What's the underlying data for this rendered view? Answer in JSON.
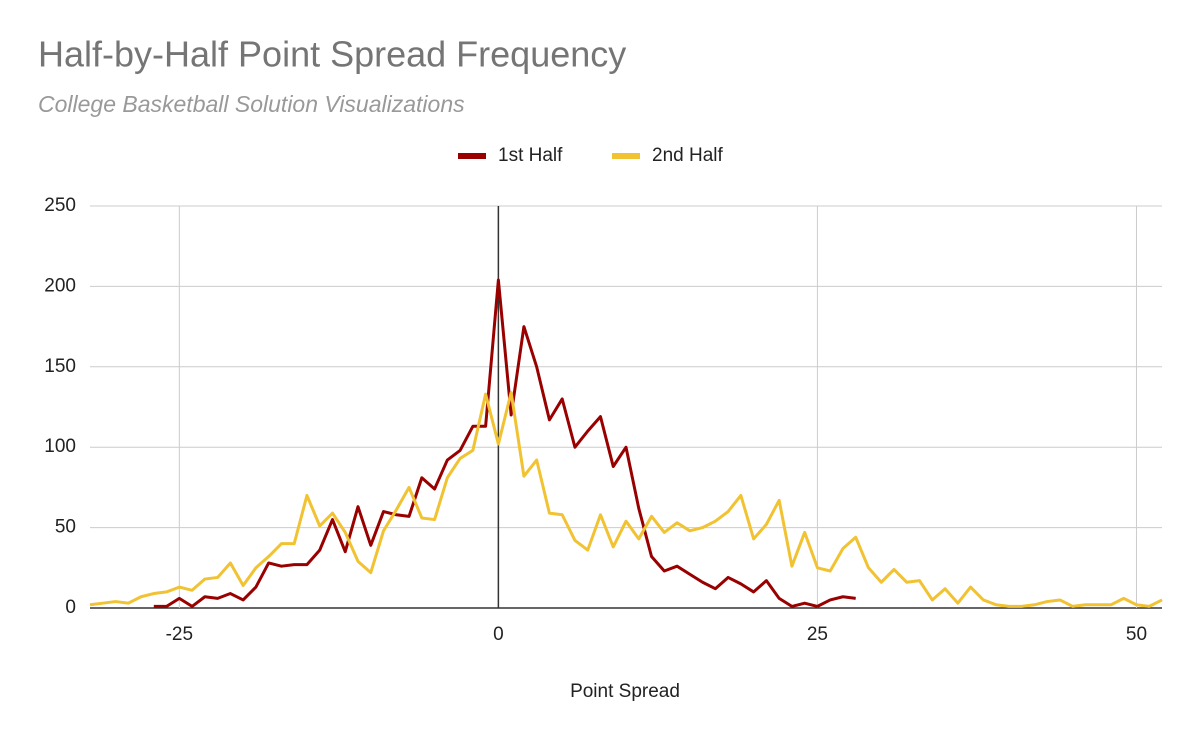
{
  "chart_data": {
    "type": "line",
    "title": "Half-by-Half Point Spread Frequency",
    "subtitle": "College Basketball Solution Visualizations",
    "x_label": "Point Spread",
    "x": [
      -32,
      -31,
      -30,
      -29,
      -28,
      -27,
      -26,
      -25,
      -24,
      -23,
      -22,
      -21,
      -20,
      -19,
      -18,
      -17,
      -16,
      -15,
      -14,
      -13,
      -12,
      -11,
      -10,
      -9,
      -8,
      -7,
      -6,
      -5,
      -4,
      -3,
      -2,
      -1,
      0,
      1,
      2,
      3,
      4,
      5,
      6,
      7,
      8,
      9,
      10,
      11,
      12,
      13,
      14,
      15,
      16,
      17,
      18,
      19,
      20,
      21,
      22,
      23,
      24,
      25,
      26,
      27,
      28,
      29,
      30,
      31,
      32,
      33,
      34,
      35,
      36,
      37,
      38,
      39,
      40,
      41,
      42,
      43,
      44,
      45,
      46,
      47,
      48,
      49,
      50,
      51,
      52
    ],
    "series": [
      {
        "name": "1st Half",
        "color": "#990000",
        "values": [
          null,
          null,
          null,
          null,
          null,
          1,
          1,
          6,
          1,
          7,
          6,
          9,
          5,
          13,
          28,
          26,
          27,
          27,
          36,
          55,
          35,
          63,
          39,
          60,
          58,
          57,
          81,
          74,
          92,
          98,
          113,
          113,
          204,
          120,
          175,
          150,
          117,
          130,
          100,
          110,
          119,
          88,
          100,
          62,
          32,
          23,
          26,
          21,
          16,
          12,
          19,
          15,
          10,
          17,
          6,
          1,
          3,
          1,
          5,
          7,
          6,
          null,
          null,
          null,
          null,
          null,
          null,
          null,
          null,
          null,
          null,
          null,
          null,
          null,
          null,
          null,
          null,
          null,
          null,
          null,
          null,
          null,
          null,
          null,
          null
        ]
      },
      {
        "name": "2nd Half",
        "color": "#f1c232",
        "values": [
          2,
          3,
          4,
          3,
          7,
          9,
          10,
          13,
          11,
          18,
          19,
          28,
          14,
          25,
          32,
          40,
          40,
          70,
          51,
          59,
          47,
          29,
          22,
          48,
          61,
          75,
          56,
          55,
          81,
          93,
          98,
          133,
          102,
          134,
          82,
          92,
          59,
          58,
          42,
          36,
          58,
          38,
          54,
          43,
          57,
          47,
          53,
          48,
          50,
          54,
          60,
          70,
          43,
          52,
          67,
          26,
          47,
          25,
          23,
          37,
          44,
          25,
          16,
          24,
          16,
          17,
          5,
          12,
          3,
          13,
          5,
          2,
          1,
          1,
          2,
          4,
          5,
          1,
          2,
          2,
          2,
          6,
          2,
          1,
          5
        ]
      }
    ],
    "xlim": [
      -32,
      52
    ],
    "xticks": [
      -25,
      0,
      25,
      50
    ],
    "ylim": [
      0,
      250
    ],
    "yticks": [
      0,
      50,
      100,
      150,
      200,
      250
    ],
    "grid": true,
    "legend": "top"
  }
}
